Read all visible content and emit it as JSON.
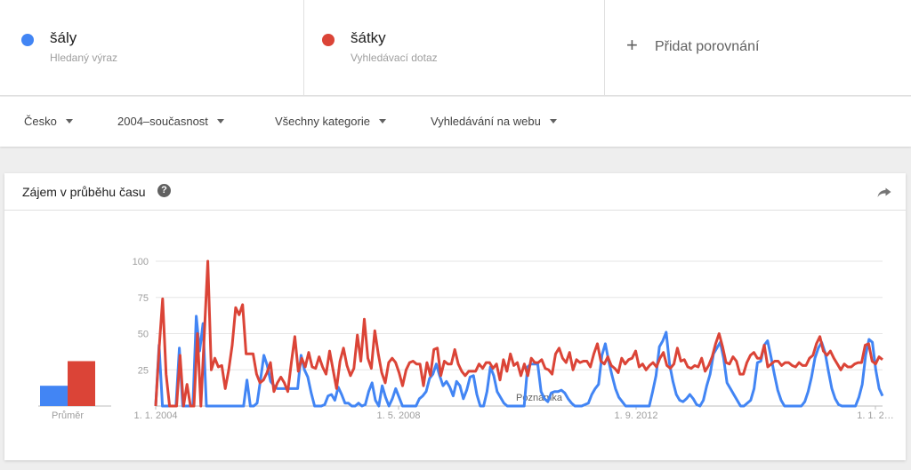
{
  "terms": [
    {
      "name": "šály",
      "subtitle": "Hledaný výraz",
      "color": "#4285f4"
    },
    {
      "name": "šátky",
      "subtitle": "Vyhledávací dotaz",
      "color": "#db4437"
    }
  ],
  "add_comparison": {
    "icon": "plus-icon",
    "label": "Přidat porovnání"
  },
  "filters": {
    "region": "Česko",
    "period": "2004–současnost",
    "category": "Všechny kategorie",
    "search_type": "Vyhledávání na webu"
  },
  "card": {
    "title": "Zájem v průběhu času",
    "help_icon": "help-icon",
    "help_glyph": "?",
    "share_icon": "share-icon"
  },
  "chart_data": {
    "type": "line",
    "y_ticks": [
      "100",
      "75",
      "50",
      "25"
    ],
    "x_ticks": [
      "1. 1. 2004",
      "1. 5. 2008",
      "1. 9. 2012",
      "1. 1. 2…"
    ],
    "note_label": "Poznámka",
    "ylim": [
      0,
      100
    ],
    "average": {
      "label": "Průměr",
      "values": [
        14,
        31
      ]
    },
    "series": [
      {
        "name": "šály",
        "color": "#4285f4",
        "values": [
          0,
          42,
          0,
          0,
          0,
          0,
          0,
          40,
          0,
          0,
          0,
          0,
          62,
          38,
          57,
          0,
          0,
          0,
          0,
          0,
          0,
          0,
          0,
          0,
          0,
          0,
          0,
          18,
          0,
          0,
          2,
          18,
          35,
          28,
          17,
          14,
          12,
          12,
          12,
          12,
          12,
          12,
          12,
          35,
          25,
          20,
          9,
          0,
          0,
          0,
          1,
          7,
          8,
          4,
          13,
          8,
          2,
          2,
          0,
          0,
          2,
          0,
          1,
          10,
          16,
          4,
          0,
          14,
          6,
          0,
          5,
          12,
          6,
          0,
          0,
          0,
          0,
          0,
          5,
          7,
          10,
          19,
          22,
          29,
          21,
          14,
          17,
          13,
          7,
          17,
          14,
          5,
          11,
          20,
          21,
          8,
          0,
          0,
          10,
          27,
          21,
          10,
          6,
          2,
          0,
          0,
          0,
          0,
          0,
          0,
          27,
          29,
          29,
          29,
          10,
          5,
          3,
          9,
          10,
          10,
          11,
          9,
          5,
          2,
          0,
          0,
          0,
          1,
          2,
          8,
          12,
          15,
          35,
          43,
          31,
          21,
          12,
          6,
          3,
          0,
          0,
          0,
          0,
          0,
          0,
          0,
          0,
          10,
          21,
          41,
          45,
          51,
          29,
          17,
          8,
          4,
          3,
          5,
          8,
          5,
          1,
          0,
          4,
          14,
          22,
          36,
          40,
          44,
          33,
          16,
          12,
          8,
          4,
          0,
          0,
          2,
          4,
          12,
          30,
          31,
          42,
          45,
          34,
          22,
          11,
          4,
          0,
          0,
          0,
          0,
          0,
          0,
          3,
          10,
          20,
          33,
          40,
          44,
          37,
          24,
          12,
          5,
          1,
          0,
          0,
          0,
          0,
          0,
          6,
          15,
          35,
          46,
          44,
          25,
          12,
          7
        ]
      },
      {
        "name": "šátky",
        "color": "#db4437",
        "values": [
          0,
          40,
          74,
          22,
          0,
          0,
          0,
          35,
          0,
          15,
          0,
          0,
          50,
          0,
          50,
          100,
          25,
          33,
          27,
          28,
          12,
          25,
          42,
          68,
          63,
          70,
          36,
          36,
          36,
          22,
          16,
          18,
          23,
          30,
          10,
          16,
          20,
          16,
          10,
          30,
          48,
          24,
          33,
          27,
          37,
          27,
          26,
          34,
          27,
          22,
          38,
          25,
          12,
          31,
          40,
          28,
          21,
          26,
          49,
          31,
          60,
          33,
          26,
          52,
          36,
          23,
          16,
          30,
          33,
          30,
          23,
          14,
          25,
          30,
          31,
          29,
          29,
          14,
          30,
          21,
          39,
          40,
          21,
          31,
          29,
          29,
          39,
          29,
          24,
          21,
          24,
          24,
          24,
          29,
          26,
          30,
          30,
          26,
          29,
          18,
          32,
          24,
          36,
          28,
          30,
          21,
          29,
          21,
          33,
          30,
          30,
          32,
          26,
          25,
          22,
          36,
          40,
          33,
          30,
          37,
          25,
          32,
          30,
          31,
          31,
          27,
          36,
          43,
          31,
          29,
          34,
          28,
          26,
          23,
          33,
          29,
          32,
          33,
          38,
          27,
          29,
          25,
          28,
          30,
          27,
          33,
          37,
          28,
          26,
          29,
          40,
          31,
          32,
          27,
          26,
          28,
          27,
          33,
          24,
          28,
          34,
          43,
          50,
          41,
          30,
          29,
          34,
          31,
          22,
          22,
          30,
          35,
          37,
          33,
          33,
          42,
          27,
          29,
          31,
          31,
          28,
          30,
          30,
          28,
          27,
          30,
          28,
          28,
          33,
          35,
          43,
          48,
          38,
          35,
          38,
          33,
          29,
          25,
          29,
          27,
          27,
          29,
          30,
          30,
          42,
          43,
          31,
          29,
          34,
          32
        ]
      }
    ]
  }
}
